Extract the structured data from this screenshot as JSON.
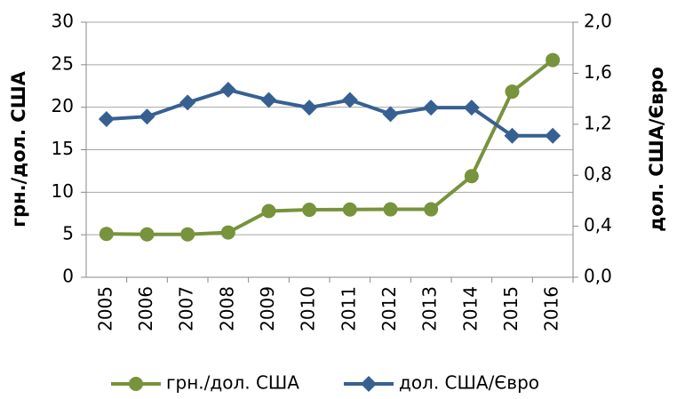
{
  "chart_data": {
    "type": "line",
    "categories": [
      "2005",
      "2006",
      "2007",
      "2008",
      "2009",
      "2010",
      "2011",
      "2012",
      "2013",
      "2014",
      "2015",
      "2016"
    ],
    "series": [
      {
        "name": "грн./дол. США",
        "color": "#77933c",
        "marker": "circle",
        "values": [
          5.1,
          5.05,
          5.05,
          5.27,
          7.79,
          7.94,
          7.97,
          7.99,
          7.99,
          11.89,
          21.84,
          25.55
        ]
      },
      {
        "name": "дол. США/Євро",
        "color": "#376092",
        "marker": "diamond",
        "axis": "y2",
        "values": [
          1.24,
          1.26,
          1.37,
          1.47,
          1.39,
          1.33,
          1.39,
          1.28,
          1.33,
          1.33,
          1.11,
          1.11
        ]
      }
    ],
    "y_label": "грн./дол. США",
    "y2_label": "дол. США/Євро",
    "ylim": [
      0,
      30
    ],
    "yticks": [
      0,
      5,
      10,
      15,
      20,
      25,
      30
    ],
    "y2lim": [
      0,
      2
    ],
    "y2ticks": [
      {
        "value": 0,
        "label": "0,0"
      },
      {
        "value": 0.4,
        "label": "0,4"
      },
      {
        "value": 0.8,
        "label": "0,8"
      },
      {
        "value": 1.2,
        "label": "1,2"
      },
      {
        "value": 1.6,
        "label": "1,6"
      },
      {
        "value": 2,
        "label": "2,0"
      }
    ],
    "grid": true,
    "legend": "bottom"
  }
}
